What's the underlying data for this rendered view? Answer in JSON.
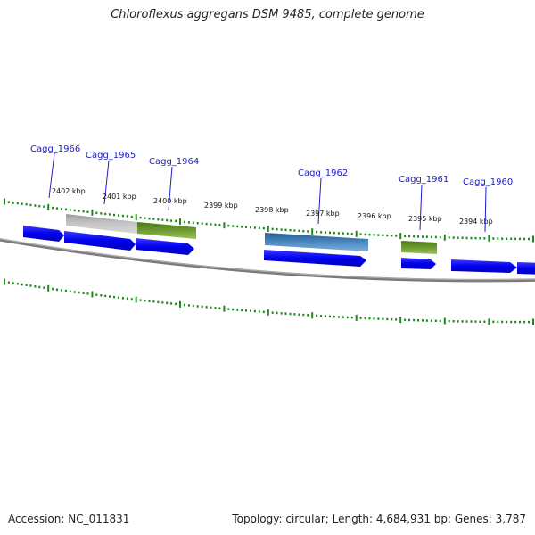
{
  "title": "Chloroflexus aggregans DSM 9485, complete genome",
  "footer": {
    "accession": "Accession: NC_011831",
    "summary": "Topology: circular; Length: 4,684,931 bp; Genes: 3,787"
  },
  "colors": {
    "background": "#ffffff",
    "backbone": "#7a7a7a",
    "tick": "#1a8a1a",
    "cds_blue": "#0a0af0",
    "gene_label": "#1c1ccc",
    "grey_feature": "#b8b8b8",
    "olive_feature": "#6e9b2e",
    "steelblue_feature": "#3f7fb8"
  },
  "scale": {
    "labels": [
      "2402 kbp",
      "2401 kbp",
      "2400 kbp",
      "2399 kbp",
      "2398 kbp",
      "2397 kbp",
      "2396 kbp",
      "2395 kbp",
      "2394 kbp"
    ]
  },
  "genes": [
    {
      "name": "Cagg_1966"
    },
    {
      "name": "Cagg_1965"
    },
    {
      "name": "Cagg_1964"
    },
    {
      "name": "Cagg_1962"
    },
    {
      "name": "Cagg_1961"
    },
    {
      "name": "Cagg_1960"
    }
  ]
}
